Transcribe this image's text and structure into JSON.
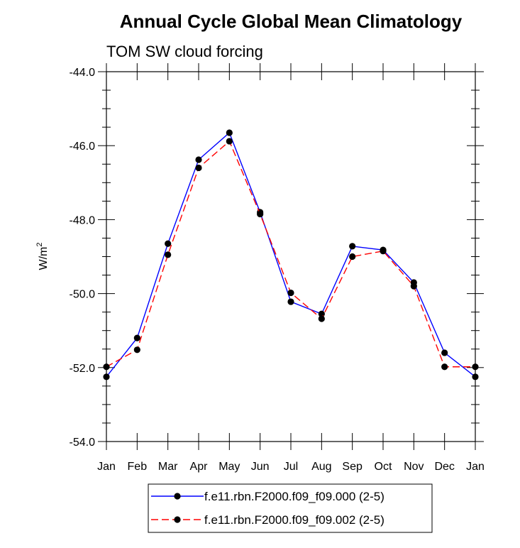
{
  "chart_data": {
    "type": "line",
    "title": "Annual Cycle Global Mean Climatology",
    "subtitle": "TOM SW cloud forcing",
    "ylabel": "W/m",
    "ylabel_sup": "2",
    "categories": [
      "Jan",
      "Feb",
      "Mar",
      "Apr",
      "May",
      "Jun",
      "Jul",
      "Aug",
      "Sep",
      "Oct",
      "Nov",
      "Dec",
      "Jan"
    ],
    "ylim": [
      -54.0,
      -44.0
    ],
    "yticks": [
      -44.0,
      -46.0,
      -48.0,
      -50.0,
      -52.0,
      -54.0
    ],
    "ytick_labels": [
      "-44.0",
      "-46.0",
      "-48.0",
      "-50.0",
      "-52.0",
      "-54.0"
    ],
    "grid": false,
    "legend_position": "bottom-center",
    "series": [
      {
        "name": "f.e11.rbn.F2000.f09_f09.000 (2-5)",
        "color": "#0000ff",
        "dash": "solid",
        "values": [
          -52.25,
          -51.2,
          -48.65,
          -46.38,
          -45.65,
          -47.8,
          -50.22,
          -50.55,
          -48.72,
          -48.82,
          -49.7,
          -51.6,
          -52.25
        ]
      },
      {
        "name": "f.e11.rbn.F2000.f09_f09.002 (2-5)",
        "color": "#ff0000",
        "dash": "dashed",
        "values": [
          -51.98,
          -51.52,
          -48.95,
          -46.6,
          -45.88,
          -47.85,
          -49.98,
          -50.68,
          -49.0,
          -48.85,
          -49.8,
          -51.98,
          -51.98
        ]
      }
    ]
  }
}
